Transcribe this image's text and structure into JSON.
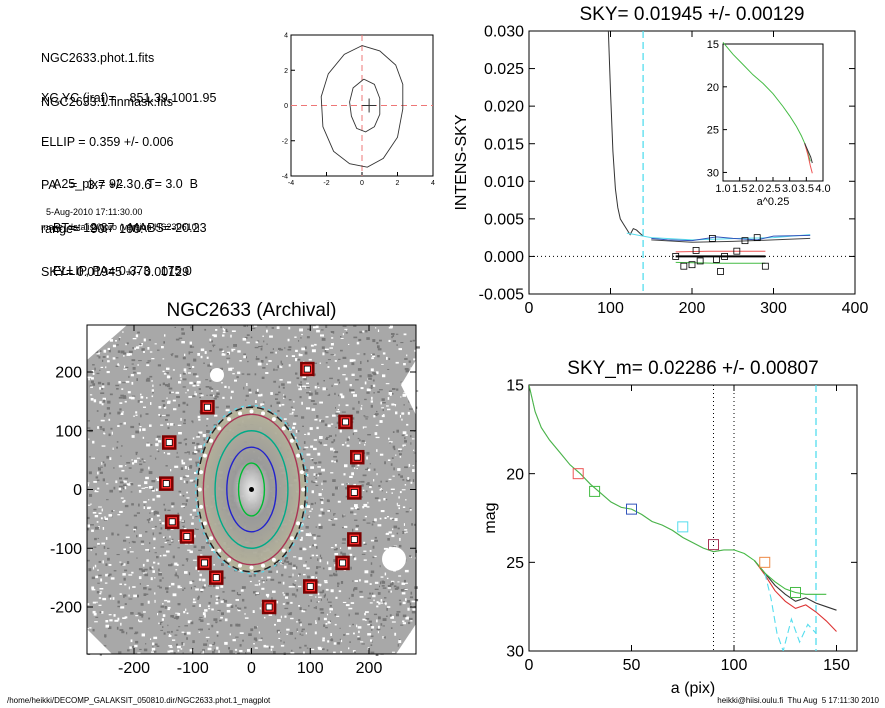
{
  "info": {
    "lines1": [
      "NGC2633.phot.1.fits",
      "NGC2633.1.finmask.fits"
    ],
    "lines2": [
      "XC,YC (iraf)=    851.39,1001.95",
      "ELLIP = 0.359 +/- 0.006",
      "PA    =   3.7 +/-   0.6",
      "range=   90.-  100.",
      "SKY= 0.01945 +/- 0.00129"
    ],
    "lines3": [
      "A25_pix= 92.3    T= 3.0  B",
      "BT=  12.87    MABS=-20.23",
      "ELLIP, PA= 0.373   175.0"
    ],
    "date": "5-Aug-2010 17:11:30.00",
    "program": "make_datalist0.pro (version HS230610)"
  },
  "footer": {
    "left": "/home/heikki/DECOMP_GALAKSIT_050810.dir/NGC2633.phot.1_magplot",
    "right": "heikki@hiisi.oulu.fi  Thu Aug  5 17:11:30 2010"
  },
  "chart_data": [
    {
      "id": "contour",
      "type": "line",
      "xlim": [
        -4,
        4
      ],
      "ylim": [
        -4,
        4
      ],
      "xticks": [
        -4,
        -2,
        0,
        2,
        4
      ],
      "yticks": [
        -4,
        -2,
        0,
        2,
        4
      ],
      "outer_contour": [
        [
          0.0,
          3.4
        ],
        [
          1.0,
          3.1
        ],
        [
          1.9,
          2.3
        ],
        [
          2.3,
          1.2
        ],
        [
          2.3,
          -0.2
        ],
        [
          2.0,
          -1.8
        ],
        [
          1.2,
          -3.0
        ],
        [
          0.3,
          -3.5
        ],
        [
          -0.7,
          -3.3
        ],
        [
          -1.6,
          -2.6
        ],
        [
          -2.2,
          -1.2
        ],
        [
          -2.3,
          0.5
        ],
        [
          -1.9,
          1.8
        ],
        [
          -1.0,
          2.9
        ],
        [
          0.0,
          3.4
        ]
      ],
      "inner_contour": [
        [
          0.1,
          1.5
        ],
        [
          0.7,
          1.2
        ],
        [
          1.0,
          0.4
        ],
        [
          1.0,
          -0.5
        ],
        [
          0.7,
          -1.2
        ],
        [
          0.2,
          -1.5
        ],
        [
          -0.3,
          -1.3
        ],
        [
          -0.6,
          -0.6
        ],
        [
          -0.7,
          0.2
        ],
        [
          -0.5,
          1.0
        ],
        [
          0.1,
          1.5
        ]
      ],
      "center": [
        0.4,
        0.0
      ],
      "colors": {
        "dash": "#e77"
      }
    },
    {
      "id": "image",
      "type": "scatter",
      "title": "NGC2633 (Archival)",
      "xlim": [
        -280,
        280
      ],
      "ylim": [
        -280,
        280
      ],
      "xticks": [
        -200,
        -100,
        0,
        100,
        200
      ],
      "yticks": [
        -200,
        -100,
        0,
        100,
        200
      ],
      "sky_boxes": [
        [
          -140,
          80
        ],
        [
          -145,
          10
        ],
        [
          -135,
          -55
        ],
        [
          -110,
          -80
        ],
        [
          -80,
          -125
        ],
        [
          -60,
          -150
        ],
        [
          -75,
          140
        ],
        [
          100,
          -165
        ],
        [
          30,
          -200
        ],
        [
          160,
          115
        ],
        [
          180,
          55
        ],
        [
          175,
          -5
        ],
        [
          175,
          -85
        ],
        [
          155,
          -125
        ]
      ],
      "sky_box_top": [
        95,
        205
      ],
      "ellipses": [
        {
          "a": 140,
          "b": 92,
          "color": "#222",
          "dash": true
        },
        {
          "a": 128,
          "b": 82,
          "color": "#a35"
        },
        {
          "a": 100,
          "b": 62,
          "color": "#0a8"
        },
        {
          "a": 72,
          "b": 42,
          "color": "#22c"
        },
        {
          "a": 45,
          "b": 22,
          "color": "#0b3"
        }
      ],
      "colors": {
        "box_outer": "#7a0000",
        "box_inner": "#ff3030",
        "cyan": "#5de"
      }
    },
    {
      "id": "sky",
      "type": "line",
      "title": "SKY= 0.01945 +/- 0.00129",
      "ylabel": "INTENS-SKY",
      "xlim": [
        0,
        400
      ],
      "ylim": [
        -0.005,
        0.03
      ],
      "xticks": [
        0,
        100,
        200,
        300,
        400
      ],
      "yticks": [
        -0.005,
        0.0,
        0.005,
        0.01,
        0.015,
        0.02,
        0.025,
        0.03
      ],
      "ytick_labels": [
        "-0.005",
        "0.000",
        "0.005",
        "0.010",
        "0.015",
        "0.020",
        "0.025",
        "0.030"
      ],
      "xtick_labels": [
        "0",
        "100",
        "200",
        "300",
        "400"
      ],
      "vline": 140,
      "profile": [
        [
          97,
          0.031
        ],
        [
          100,
          0.022
        ],
        [
          103,
          0.014
        ],
        [
          106,
          0.009
        ],
        [
          109,
          0.0065
        ],
        [
          112,
          0.005
        ],
        [
          116,
          0.0043
        ],
        [
          120,
          0.0036
        ],
        [
          124,
          0.0029
        ],
        [
          128,
          0.0037
        ],
        [
          132,
          0.0035
        ],
        [
          136,
          0.0031
        ],
        [
          140,
          0.0027
        ]
      ],
      "series": [
        {
          "color": "#5de",
          "values": [
            [
              120,
              0.0031
            ],
            [
              140,
              0.0027
            ],
            [
              150,
              0.0025
            ],
            [
              200,
              0.0022
            ],
            [
              260,
              0.0024
            ],
            [
              300,
              0.0025
            ],
            [
              345,
              0.0029
            ]
          ]
        },
        {
          "color": "#35b",
          "values": [
            [
              150,
              0.0024
            ],
            [
              170,
              0.0022
            ],
            [
              200,
              0.0021
            ],
            [
              230,
              0.0026
            ],
            [
              250,
              0.0024
            ],
            [
              280,
              0.0022
            ],
            [
              300,
              0.0027
            ],
            [
              345,
              0.0028
            ]
          ]
        },
        {
          "color": "#444",
          "values": [
            [
              150,
              0.0022
            ],
            [
              200,
              0.0019
            ],
            [
              250,
              0.002
            ],
            [
              300,
              0.0022
            ],
            [
              345,
              0.0024
            ]
          ]
        },
        {
          "color": "#e55",
          "values": [
            [
              180,
              0.0006
            ],
            [
              220,
              0.0007
            ],
            [
              260,
              0.0007
            ],
            [
              290,
              0.0007
            ]
          ]
        },
        {
          "color": "#4b4",
          "values": [
            [
              180,
              -0.0008
            ],
            [
              230,
              -0.0009
            ],
            [
              290,
              -0.0009
            ]
          ]
        }
      ],
      "mean_line": [
        [
          180,
          0.0
        ],
        [
          290,
          0.0
        ]
      ],
      "boxes": [
        [
          180,
          0.0
        ],
        [
          190,
          -0.0013
        ],
        [
          200,
          -0.0011
        ],
        [
          205,
          0.0008
        ],
        [
          210,
          -0.0006
        ],
        [
          225,
          0.0024
        ],
        [
          230,
          -0.0004
        ],
        [
          235,
          -0.002
        ],
        [
          240,
          0.0
        ],
        [
          255,
          0.0007
        ],
        [
          265,
          0.0021
        ],
        [
          280,
          0.0025
        ],
        [
          290,
          -0.0013
        ]
      ],
      "inset": {
        "xlabel": "a^0.25",
        "xlim": [
          1.0,
          4.0
        ],
        "ylim": [
          31,
          15
        ],
        "xticks": [
          1.0,
          1.5,
          2.0,
          2.5,
          3.0,
          3.5,
          4.0
        ],
        "xtick_labels": [
          "1.0",
          "1.5",
          "2.0",
          "2.5",
          "3.0",
          "3.5",
          "4.0"
        ],
        "yticks": [
          15,
          20,
          25,
          30
        ],
        "curve": [
          [
            1.0,
            14.8
          ],
          [
            1.3,
            16.2
          ],
          [
            1.6,
            17.4
          ],
          [
            1.9,
            18.6
          ],
          [
            2.2,
            19.6
          ],
          [
            2.5,
            20.8
          ],
          [
            2.8,
            22.3
          ],
          [
            3.0,
            23.4
          ],
          [
            3.2,
            24.6
          ],
          [
            3.35,
            25.7
          ],
          [
            3.45,
            26.6
          ],
          [
            3.55,
            27.8
          ],
          [
            3.62,
            28.7
          ]
        ],
        "tails": [
          {
            "color": "#e55",
            "values": [
              [
                3.45,
                26.6
              ],
              [
                3.55,
                28.0
              ],
              [
                3.62,
                29.2
              ],
              [
                3.68,
                30.1
              ]
            ]
          },
          {
            "color": "#333",
            "values": [
              [
                3.45,
                26.6
              ],
              [
                3.55,
                27.5
              ],
              [
                3.63,
                28.2
              ],
              [
                3.68,
                28.9
              ]
            ]
          }
        ]
      }
    },
    {
      "id": "mag",
      "type": "line",
      "title": "SKY_m=  0.02286 +/- 0.00807",
      "xlabel": "a (pix)",
      "ylabel": "mag",
      "xlim": [
        0,
        160
      ],
      "ylim": [
        30,
        15
      ],
      "xticks": [
        0,
        50,
        100,
        150
      ],
      "yticks": [
        15,
        20,
        25,
        30
      ],
      "vlines_dotted": [
        90,
        100
      ],
      "vline_dashed": 140,
      "curve": [
        [
          0,
          15.0
        ],
        [
          3,
          16.5
        ],
        [
          6,
          17.4
        ],
        [
          10,
          18.1
        ],
        [
          15,
          18.8
        ],
        [
          20,
          19.5
        ],
        [
          25,
          20.0
        ],
        [
          30,
          20.6
        ],
        [
          35,
          21.1
        ],
        [
          40,
          21.6
        ],
        [
          45,
          21.9
        ],
        [
          50,
          22.0
        ],
        [
          55,
          22.3
        ],
        [
          60,
          22.7
        ],
        [
          65,
          22.9
        ],
        [
          70,
          23.2
        ],
        [
          75,
          23.6
        ],
        [
          80,
          23.9
        ],
        [
          85,
          24.2
        ],
        [
          90,
          24.4
        ],
        [
          95,
          24.3
        ],
        [
          100,
          24.3
        ],
        [
          105,
          24.5
        ],
        [
          110,
          24.9
        ],
        [
          115,
          25.6
        ],
        [
          120,
          26.1
        ],
        [
          125,
          26.5
        ],
        [
          130,
          26.7
        ],
        [
          135,
          26.8
        ],
        [
          140,
          26.8
        ],
        [
          145,
          26.8
        ]
      ],
      "tails": [
        {
          "color": "#d33",
          "values": [
            [
              110,
              24.9
            ],
            [
              115,
              25.7
            ],
            [
              120,
              26.6
            ],
            [
              125,
              27.2
            ],
            [
              130,
              27.6
            ],
            [
              135,
              27.4
            ],
            [
              140,
              27.8
            ],
            [
              145,
              28.3
            ],
            [
              150,
              28.9
            ]
          ]
        },
        {
          "color": "#333",
          "values": [
            [
              110,
              24.9
            ],
            [
              115,
              25.6
            ],
            [
              120,
              26.3
            ],
            [
              125,
              26.8
            ],
            [
              130,
              27.2
            ],
            [
              135,
              27.0
            ],
            [
              140,
              27.3
            ],
            [
              145,
              27.5
            ],
            [
              150,
              27.7
            ]
          ]
        },
        {
          "color": "#5de",
          "dash": true,
          "values": [
            [
              115,
              25.6
            ],
            [
              118,
              27.0
            ],
            [
              121,
              29.0
            ],
            [
              124,
              30.0
            ],
            [
              128,
              28.2
            ],
            [
              132,
              29.5
            ],
            [
              136,
              28.5
            ],
            [
              140,
              29.0
            ]
          ]
        }
      ],
      "markers": [
        {
          "x": 24,
          "y": 20.0,
          "color": "#e55"
        },
        {
          "x": 32,
          "y": 21.0,
          "color": "#4b4"
        },
        {
          "x": 50,
          "y": 22.0,
          "color": "#35b"
        },
        {
          "x": 75,
          "y": 23.0,
          "color": "#5de"
        },
        {
          "x": 90,
          "y": 24.0,
          "color": "#a35"
        },
        {
          "x": 115,
          "y": 25.0,
          "color": "#e84"
        },
        {
          "x": 130,
          "y": 26.7,
          "color": "#4b4"
        }
      ]
    }
  ]
}
